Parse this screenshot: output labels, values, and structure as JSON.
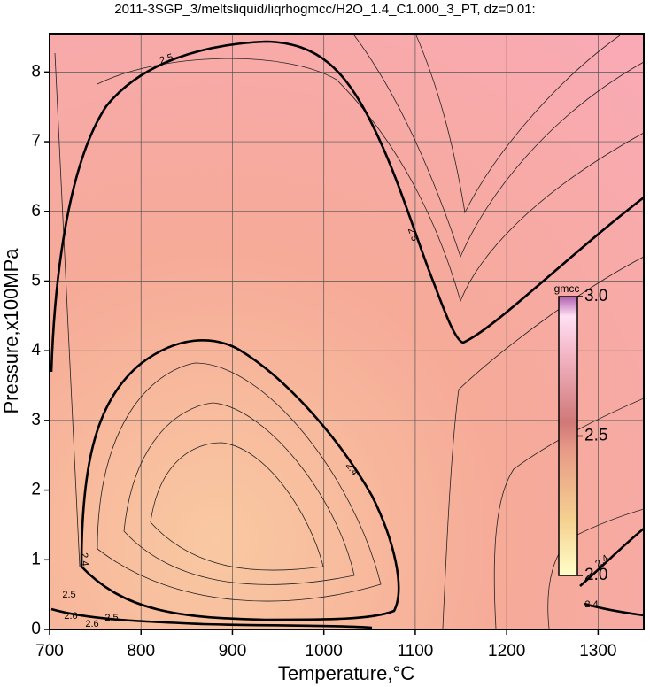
{
  "chart_data": {
    "type": "contour",
    "title": "2011-3SGP_3/meltsliquid/liqrhogmcc/H2O_1.4_C1.000_3_PT, dz=0.01:",
    "x_label": "Temperature,°C",
    "y_label": "Pressure,x100MPa",
    "xlim": [
      700,
      1350
    ],
    "xticks": [
      700,
      800,
      900,
      1000,
      1100,
      1200,
      1300
    ],
    "ylim": [
      0,
      8.5
    ],
    "yticks": [
      0,
      1,
      2,
      3,
      4,
      5,
      6,
      7,
      8
    ],
    "grid": true,
    "colorbar": {
      "label": "gmcc",
      "clim": [
        2,
        3
      ],
      "ticks": [
        {
          "value": 2,
          "label": "2.0"
        },
        {
          "value": 2.5,
          "label": "2.5"
        },
        {
          "value": 3,
          "label": "3.0"
        }
      ]
    },
    "contour_labels": [
      "2.5",
      "2.5",
      "2.4",
      "2.4",
      "2.5",
      "2.5",
      "2.6",
      "2.6",
      "2.4",
      "2.4"
    ]
  }
}
